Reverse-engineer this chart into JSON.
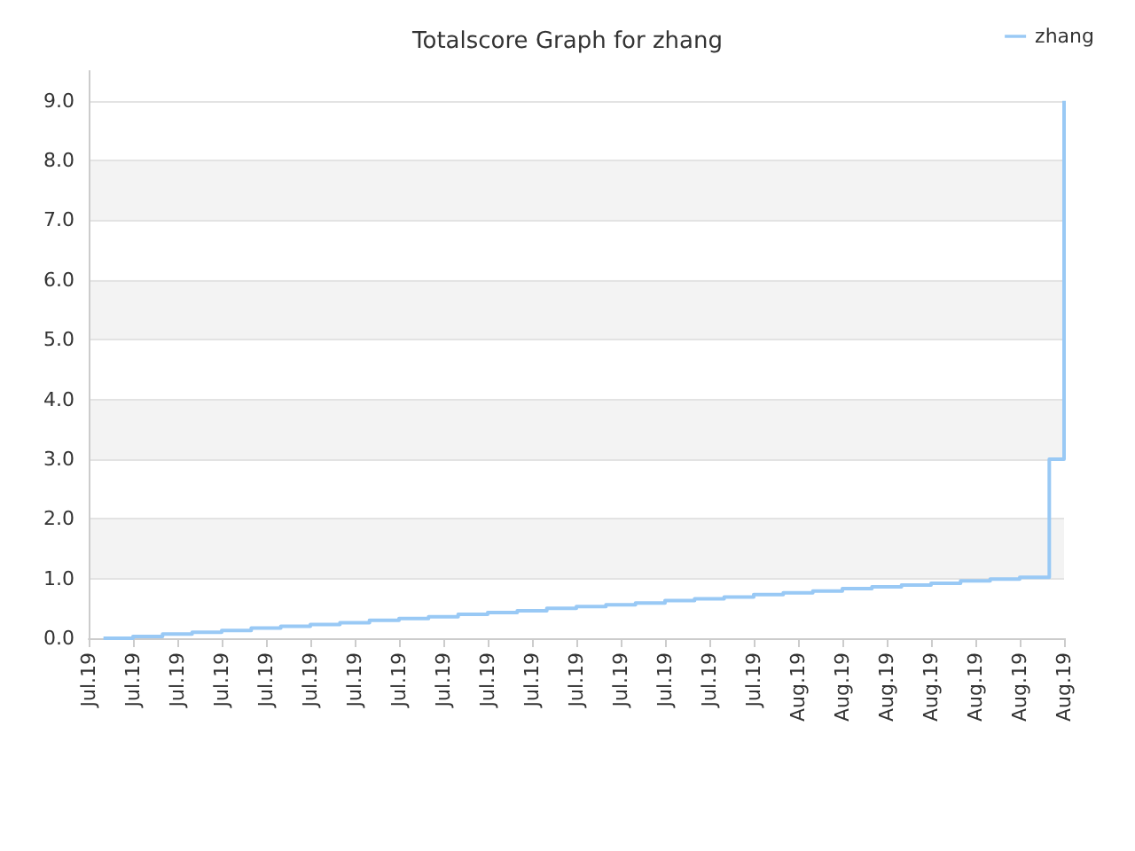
{
  "chart_data": {
    "type": "step",
    "title": "Totalscore Graph for zhang",
    "categories": [
      "Jul.19",
      null,
      null,
      "Jul.19",
      null,
      null,
      "Jul.19",
      null,
      null,
      "Jul.19",
      null,
      null,
      "Jul.19",
      null,
      null,
      "Jul.19",
      null,
      null,
      "Jul.19",
      null,
      null,
      "Jul.19",
      null,
      null,
      "Jul.19",
      null,
      null,
      "Jul.19",
      null,
      null,
      "Jul.19",
      null,
      null,
      "Jul.19",
      null,
      null,
      "Jul.19",
      null,
      null,
      "Jul.19",
      null,
      null,
      "Jul.19",
      null,
      null,
      "Jul.19",
      null,
      null,
      "Aug.19",
      null,
      null,
      "Aug.19",
      null,
      null,
      "Aug.19",
      null,
      null,
      "Aug.19",
      null,
      null,
      "Aug.19",
      null,
      null,
      "Aug.19",
      null,
      null,
      "Aug.19"
    ],
    "ylim": [
      0,
      9.5
    ],
    "yticks": [
      {
        "value": 0,
        "label": "0.0"
      },
      {
        "value": 1,
        "label": "1.0"
      },
      {
        "value": 2,
        "label": "2.0"
      },
      {
        "value": 3,
        "label": "3.0"
      },
      {
        "value": 4,
        "label": "4.0"
      },
      {
        "value": 5,
        "label": "5.0"
      },
      {
        "value": 6,
        "label": "6.0"
      },
      {
        "value": 7,
        "label": "7.0"
      },
      {
        "value": 8,
        "label": "8.0"
      },
      {
        "value": 9,
        "label": "9.0"
      }
    ],
    "grid": "y",
    "legend": "top right",
    "marker": "none",
    "line_style": "solid",
    "series": [
      {
        "name": "zhang",
        "color": "#99c9f5",
        "values": [
          null,
          0,
          0,
          0.03,
          0.03,
          0.07,
          0.07,
          0.1,
          0.1,
          0.13,
          0.13,
          0.17,
          0.17,
          0.2,
          0.2,
          0.23,
          0.23,
          0.26,
          0.26,
          0.3,
          0.3,
          0.33,
          0.33,
          0.36,
          0.36,
          0.4,
          0.4,
          0.43,
          0.43,
          0.46,
          0.46,
          0.5,
          0.5,
          0.53,
          0.53,
          0.56,
          0.56,
          0.59,
          0.59,
          0.63,
          0.63,
          0.66,
          0.66,
          0.69,
          0.69,
          0.73,
          0.73,
          0.76,
          0.76,
          0.79,
          0.79,
          0.83,
          0.83,
          0.86,
          0.86,
          0.89,
          0.89,
          0.92,
          0.92,
          0.96,
          0.96,
          0.99,
          0.99,
          1.02,
          1.02,
          3.0,
          9.0
        ]
      }
    ]
  }
}
